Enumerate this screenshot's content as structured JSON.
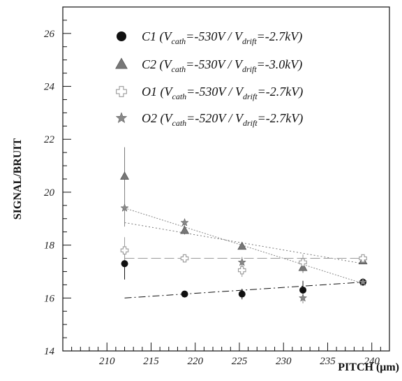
{
  "chart_data": {
    "type": "scatter",
    "xlabel": "PITCH (μm)",
    "ylabel": "SIGNAL/BRUIT",
    "xlim": [
      205,
      242
    ],
    "ylim": [
      14,
      27
    ],
    "xticks": [
      210,
      215,
      220,
      225,
      230,
      235,
      240
    ],
    "yticks": [
      14,
      16,
      18,
      20,
      22,
      24,
      26
    ],
    "grid": false,
    "legend": "top",
    "series": [
      {
        "name": "C1",
        "label": {
          "prefix": "C1 (V",
          "sub1": "cath",
          "mid": "=-530V / V",
          "sub2": "drift",
          "suffix": "=-2.7kV)"
        },
        "marker": "circle",
        "color": "#111111",
        "points": [
          {
            "x": 212,
            "y": 17.3,
            "err": 0.6
          },
          {
            "x": 218.8,
            "y": 16.15,
            "err": 0.1
          },
          {
            "x": 225.3,
            "y": 16.15,
            "err": 0.2
          },
          {
            "x": 232.2,
            "y": 16.3,
            "err": 0.35
          },
          {
            "x": 239,
            "y": 16.6,
            "err": 0.1
          }
        ],
        "fit": [
          [
            212,
            16.0
          ],
          [
            239,
            16.6
          ]
        ],
        "fit_dash": "10,4,2,4"
      },
      {
        "name": "C2",
        "label": {
          "prefix": "C2 (V",
          "sub1": "cath",
          "mid": "=-530V / V",
          "sub2": "drift",
          "suffix": "=-3.0kV)"
        },
        "marker": "triangle",
        "color": "#777777",
        "points": [
          {
            "x": 212,
            "y": 20.6,
            "err": 1.1
          },
          {
            "x": 218.8,
            "y": 18.55,
            "err": 0.15
          },
          {
            "x": 225.3,
            "y": 17.95,
            "err": 0.1
          },
          {
            "x": 232.2,
            "y": 17.15,
            "err": 0.2
          },
          {
            "x": 239,
            "y": 17.4,
            "err": 0.1
          }
        ],
        "fit": [
          [
            212,
            18.85
          ],
          [
            239,
            17.3
          ]
        ],
        "fit_dash": "2,3"
      },
      {
        "name": "O1",
        "label": {
          "prefix": "O1 (V",
          "sub1": "cath",
          "mid": "=-530V / V",
          "sub2": "drift",
          "suffix": "=-2.7kV)"
        },
        "marker": "cross",
        "color": "#9a9a9a",
        "points": [
          {
            "x": 212,
            "y": 17.8,
            "err": 0.5
          },
          {
            "x": 218.8,
            "y": 17.5,
            "err": 0.15
          },
          {
            "x": 225.3,
            "y": 17.05,
            "err": 0.25
          },
          {
            "x": 232.2,
            "y": 17.35,
            "err": 0.3
          },
          {
            "x": 239,
            "y": 17.5,
            "err": 0.1
          }
        ],
        "fit": [
          [
            212,
            17.5
          ],
          [
            239,
            17.5
          ]
        ],
        "fit_dash": "14,5"
      },
      {
        "name": "O2",
        "label": {
          "prefix": "O2 (V",
          "sub1": "cath",
          "mid": "=-520V / V",
          "sub2": "drift",
          "suffix": "=-2.7kV)"
        },
        "marker": "star",
        "color": "#888888",
        "points": [
          {
            "x": 212,
            "y": 19.4,
            "err": 0.7
          },
          {
            "x": 218.8,
            "y": 18.85,
            "err": 0.15
          },
          {
            "x": 225.3,
            "y": 17.35,
            "err": 0.2
          },
          {
            "x": 232.2,
            "y": 16.0,
            "err": 0.2
          },
          {
            "x": 239,
            "y": 16.6,
            "err": 0.1
          }
        ],
        "fit": [
          [
            212,
            19.4
          ],
          [
            239,
            16.55
          ]
        ],
        "fit_dash": "2,2"
      }
    ]
  }
}
